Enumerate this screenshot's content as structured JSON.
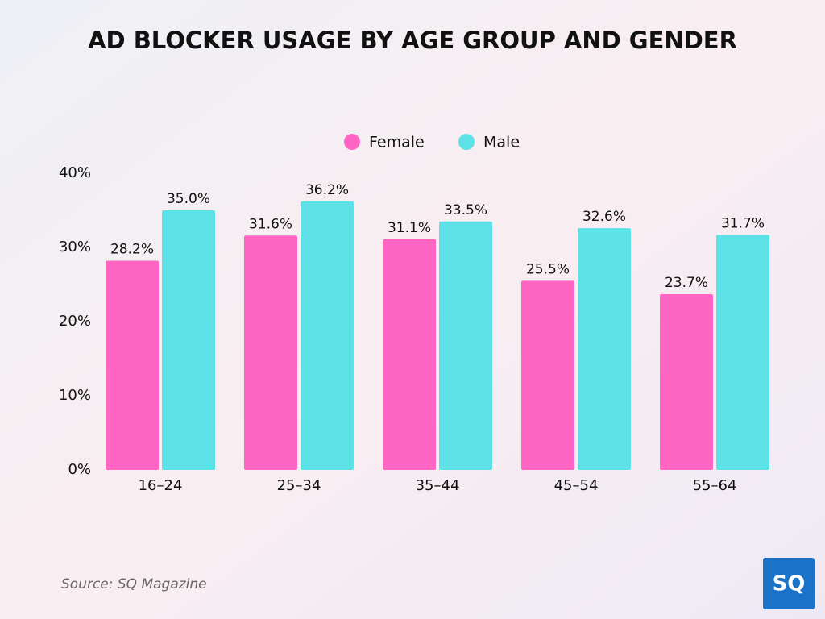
{
  "chart_data": {
    "type": "bar",
    "title": "AD BLOCKER USAGE BY AGE GROUP AND GENDER",
    "categories": [
      "16–24",
      "25–34",
      "35–44",
      "45–54",
      "55–64"
    ],
    "series": [
      {
        "name": "Female",
        "color": "#ff66c4",
        "values": [
          28.2,
          31.6,
          31.1,
          25.5,
          23.7
        ],
        "value_labels": [
          "28.2%",
          "31.6%",
          "31.1%",
          "25.5%",
          "23.7%"
        ]
      },
      {
        "name": "Male",
        "color": "#5ce1e6",
        "values": [
          35.0,
          36.2,
          33.5,
          32.6,
          31.7
        ],
        "value_labels": [
          "35.0%",
          "36.2%",
          "33.5%",
          "32.6%",
          "31.7%"
        ]
      }
    ],
    "ylim": [
      0,
      40
    ],
    "yticks": [
      {
        "value": 0,
        "label": "0%"
      },
      {
        "value": 10,
        "label": "10%"
      },
      {
        "value": 20,
        "label": "20%"
      },
      {
        "value": 30,
        "label": "30%"
      },
      {
        "value": 40,
        "label": "40%"
      }
    ],
    "grid": false,
    "legend": "top",
    "source": "Source: SQ Magazine",
    "logo": "SQ"
  }
}
